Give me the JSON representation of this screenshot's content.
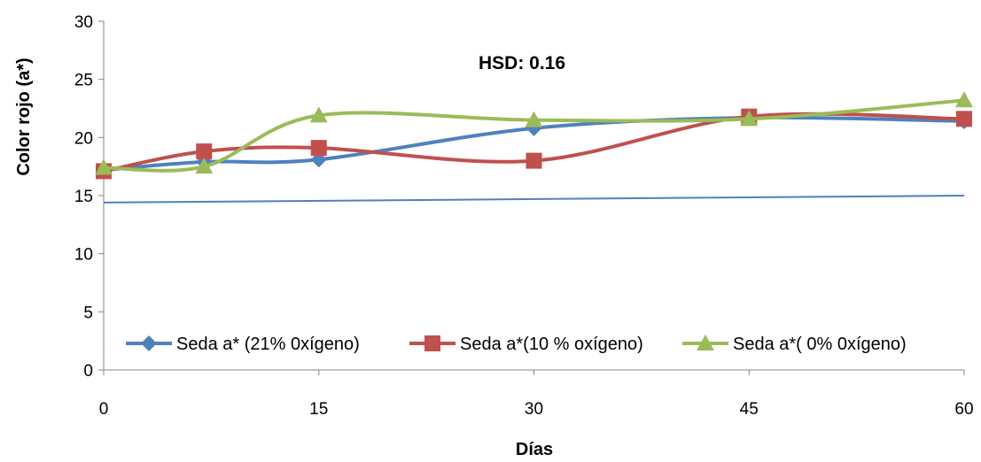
{
  "chart_data": {
    "type": "line",
    "title": "",
    "xlabel": "Días",
    "ylabel": "Color rojo  (a*)",
    "annotation": "HSD:  0.16",
    "x": [
      0,
      7,
      15,
      30,
      45,
      60
    ],
    "x_ticks": [
      0,
      15,
      30,
      45,
      60
    ],
    "y_ticks": [
      0,
      5,
      10,
      15,
      20,
      25,
      30
    ],
    "xlim": [
      0,
      60
    ],
    "ylim": [
      0,
      30
    ],
    "grid": false,
    "legend_position": "bottom-inside",
    "series": [
      {
        "name": "Seda a* (21% 0xígeno)",
        "values": [
          17.2,
          17.9,
          18.1,
          20.8,
          21.7,
          21.4
        ],
        "color": "#4F81BD",
        "marker": "diamond"
      },
      {
        "name": "Seda a*(10 % oxígeno)",
        "values": [
          17.1,
          18.8,
          19.1,
          18.0,
          21.8,
          21.6
        ],
        "color": "#C0504D",
        "marker": "square"
      },
      {
        "name": "Seda a*( 0% 0xígeno)",
        "values": [
          17.4,
          17.5,
          21.9,
          21.5,
          21.6,
          23.2
        ],
        "color": "#9BBB59",
        "marker": "triangle"
      }
    ],
    "trendline": {
      "values": [
        14.4,
        15.0
      ],
      "color": "#4F81BD"
    }
  }
}
